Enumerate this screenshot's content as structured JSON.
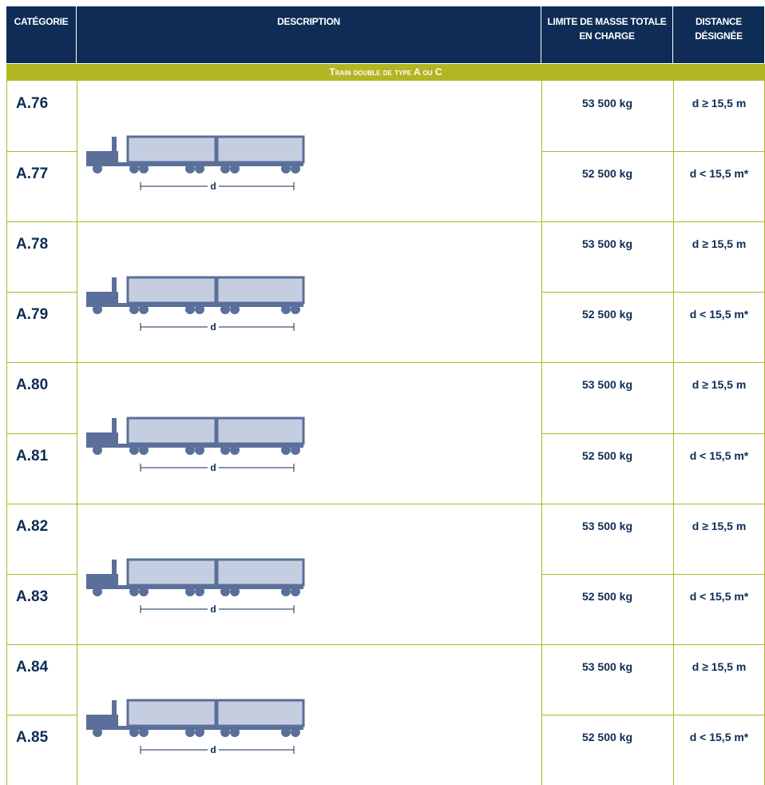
{
  "table": {
    "headers": [
      "CATÉGORIE",
      "DESCRIPTION",
      "LIMITE DE MASSE TOTALE EN CHARGE",
      "DISTANCE DÉSIGNÉE"
    ],
    "section_title": "Train double de type A ou C",
    "groups": [
      {
        "dimension_label": "d",
        "rows": [
          {
            "category": "A.76",
            "mass": "53 500 kg",
            "distance": "d ≥ 15,5 m"
          },
          {
            "category": "A.77",
            "mass": "52 500 kg",
            "distance": "d < 15,5 m*"
          }
        ]
      },
      {
        "dimension_label": "d",
        "rows": [
          {
            "category": "A.78",
            "mass": "53 500 kg",
            "distance": "d ≥ 15,5 m"
          },
          {
            "category": "A.79",
            "mass": "52 500 kg",
            "distance": "d < 15,5 m*"
          }
        ]
      },
      {
        "dimension_label": "d",
        "rows": [
          {
            "category": "A.80",
            "mass": "53 500 kg",
            "distance": "d ≥ 15,5 m"
          },
          {
            "category": "A.81",
            "mass": "52 500 kg",
            "distance": "d < 15,5 m*"
          }
        ]
      },
      {
        "dimension_label": "d",
        "rows": [
          {
            "category": "A.82",
            "mass": "53 500 kg",
            "distance": "d ≥ 15,5 m"
          },
          {
            "category": "A.83",
            "mass": "52 500 kg",
            "distance": "d < 15,5 m*"
          }
        ]
      },
      {
        "dimension_label": "d",
        "rows": [
          {
            "category": "A.84",
            "mass": "53 500 kg",
            "distance": "d ≥ 15,5 m"
          },
          {
            "category": "A.85",
            "mass": "52 500 kg",
            "distance": "d < 15,5 m*"
          }
        ]
      }
    ]
  }
}
